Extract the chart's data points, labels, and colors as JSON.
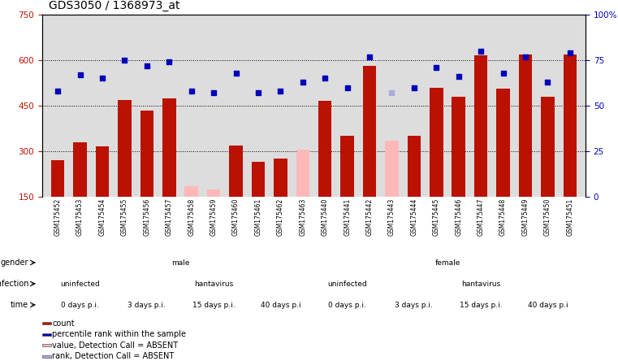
{
  "title": "GDS3050 / 1368973_at",
  "samples": [
    "GSM175452",
    "GSM175453",
    "GSM175454",
    "GSM175455",
    "GSM175456",
    "GSM175457",
    "GSM175458",
    "GSM175459",
    "GSM175460",
    "GSM175461",
    "GSM175462",
    "GSM175463",
    "GSM175440",
    "GSM175441",
    "GSM175442",
    "GSM175443",
    "GSM175444",
    "GSM175445",
    "GSM175446",
    "GSM175447",
    "GSM175448",
    "GSM175449",
    "GSM175450",
    "GSM175451"
  ],
  "counts": [
    270,
    330,
    315,
    470,
    435,
    475,
    185,
    175,
    320,
    265,
    275,
    305,
    465,
    350,
    580,
    335,
    350,
    510,
    480,
    615,
    505,
    620,
    480,
    620
  ],
  "ranks": [
    58,
    67,
    65,
    75,
    72,
    74,
    58,
    57,
    68,
    57,
    58,
    63,
    65,
    60,
    77,
    57,
    60,
    71,
    66,
    80,
    68,
    77,
    63,
    79
  ],
  "absent_count": [
    false,
    false,
    false,
    false,
    false,
    false,
    true,
    true,
    false,
    false,
    false,
    true,
    false,
    false,
    false,
    true,
    false,
    false,
    false,
    false,
    false,
    false,
    false,
    false
  ],
  "absent_rank": [
    false,
    false,
    false,
    false,
    false,
    false,
    false,
    false,
    false,
    false,
    false,
    false,
    false,
    false,
    false,
    true,
    false,
    false,
    false,
    false,
    false,
    false,
    false,
    false
  ],
  "ylim_left": [
    150,
    750
  ],
  "ylim_right": [
    0,
    100
  ],
  "yticks_left": [
    150,
    300,
    450,
    600,
    750
  ],
  "yticks_right": [
    0,
    25,
    50,
    75,
    100
  ],
  "hgrid_values": [
    300,
    450,
    600
  ],
  "bar_color": "#bb1100",
  "bar_absent_color": "#ffb8b8",
  "dot_color": "#0000bb",
  "dot_absent_color": "#aaaadd",
  "xtick_bg": "#dddddd",
  "annotation_rows": [
    {
      "label": "gender",
      "segments": [
        {
          "text": "male",
          "start": 0,
          "end": 12,
          "color": "#bbeeaa"
        },
        {
          "text": "female",
          "start": 12,
          "end": 24,
          "color": "#55cc55"
        }
      ]
    },
    {
      "label": "infection",
      "segments": [
        {
          "text": "uninfected",
          "start": 0,
          "end": 3,
          "color": "#aaaaff"
        },
        {
          "text": "hantavirus",
          "start": 3,
          "end": 12,
          "color": "#8888bb"
        },
        {
          "text": "uninfected",
          "start": 12,
          "end": 15,
          "color": "#aaaaff"
        },
        {
          "text": "hantavirus",
          "start": 15,
          "end": 24,
          "color": "#8888bb"
        }
      ]
    },
    {
      "label": "time",
      "segments": [
        {
          "text": "0 days p.i.",
          "start": 0,
          "end": 3,
          "color": "#ffdddd"
        },
        {
          "text": "3 days p.i.",
          "start": 3,
          "end": 6,
          "color": "#ffaaaa"
        },
        {
          "text": "15 days p.i.",
          "start": 6,
          "end": 9,
          "color": "#ee8888"
        },
        {
          "text": "40 days p.i",
          "start": 9,
          "end": 12,
          "color": "#cc5555"
        },
        {
          "text": "0 days p.i.",
          "start": 12,
          "end": 15,
          "color": "#ffdddd"
        },
        {
          "text": "3 days p.i.",
          "start": 15,
          "end": 18,
          "color": "#ffaaaa"
        },
        {
          "text": "15 days p.i.",
          "start": 18,
          "end": 21,
          "color": "#ee8888"
        },
        {
          "text": "40 days p.i",
          "start": 21,
          "end": 24,
          "color": "#cc5555"
        }
      ]
    }
  ],
  "legend_items": [
    {
      "label": "count",
      "color": "#bb1100"
    },
    {
      "label": "percentile rank within the sample",
      "color": "#0000bb"
    },
    {
      "label": "value, Detection Call = ABSENT",
      "color": "#ffb8b8"
    },
    {
      "label": "rank, Detection Call = ABSENT",
      "color": "#aaaadd"
    }
  ]
}
